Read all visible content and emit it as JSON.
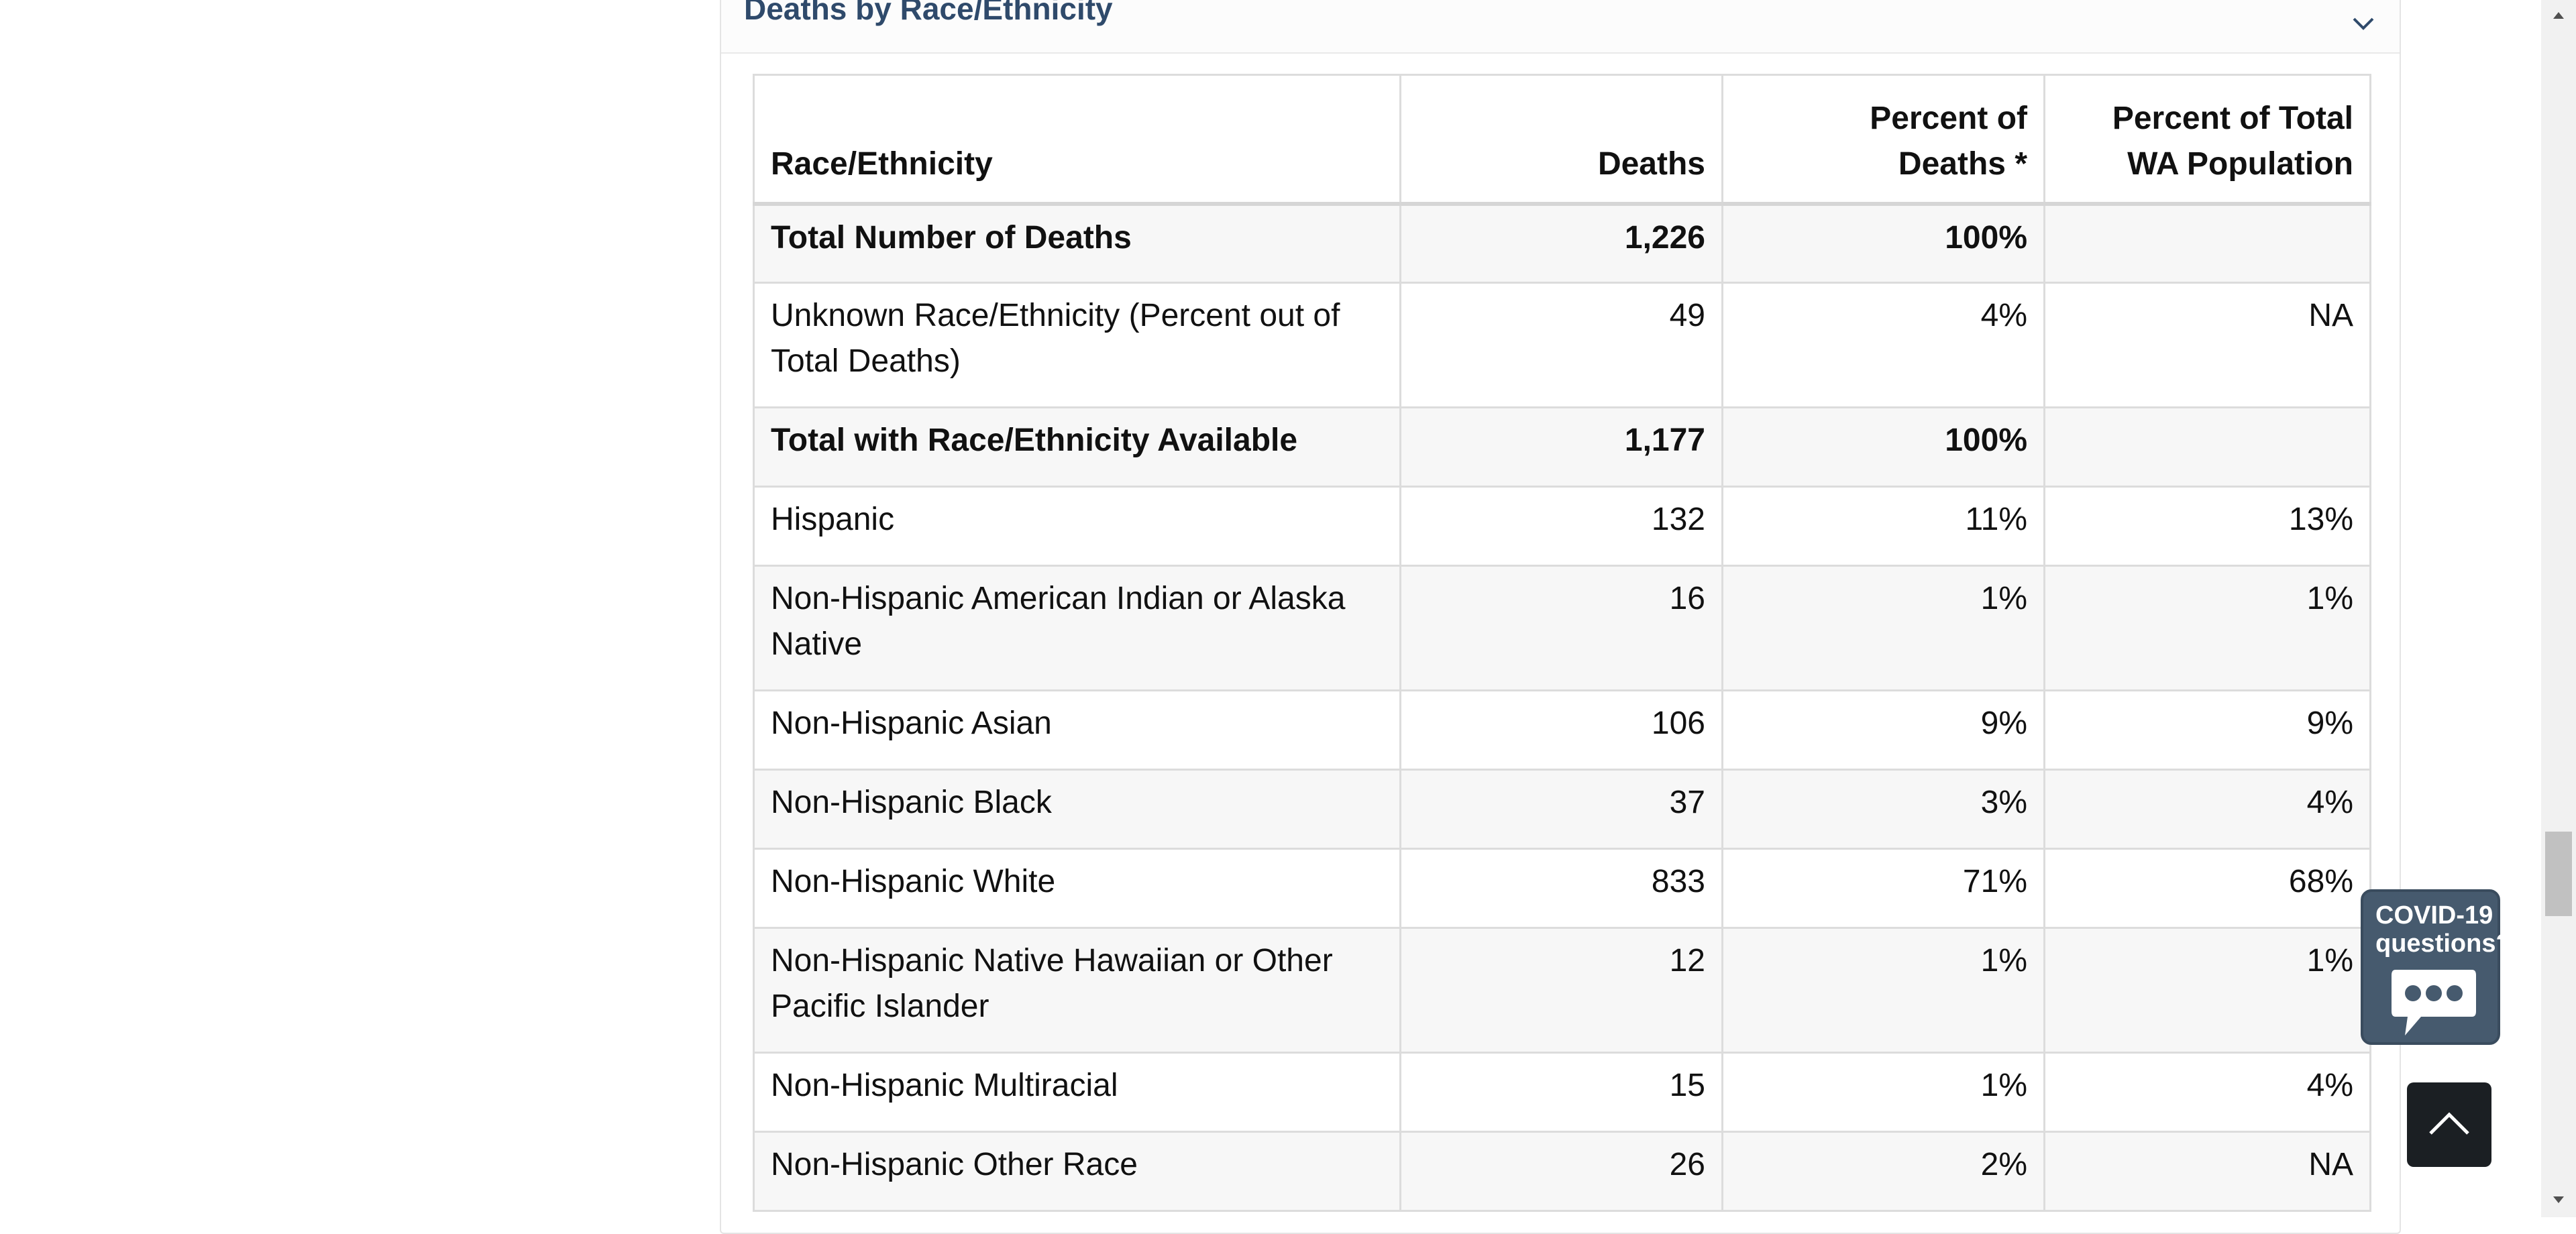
{
  "section": {
    "title": "Deaths by Race/Ethnicity"
  },
  "table": {
    "headers": {
      "race": "Race/Ethnicity",
      "deaths": "Deaths",
      "pct_deaths_l1": "Percent of",
      "pct_deaths_l2": "Deaths *",
      "pct_pop_l1": "Percent of Total",
      "pct_pop_l2": "WA Population"
    },
    "rows": [
      {
        "label": "Total Number of Deaths",
        "deaths": "1,226",
        "pct_deaths": "100%",
        "pct_pop": ""
      },
      {
        "label": "Unknown Race/Ethnicity (Percent out of Total Deaths)",
        "deaths": "49",
        "pct_deaths": "4%",
        "pct_pop": "NA"
      },
      {
        "label": "Total with Race/Ethnicity Available",
        "deaths": "1,177",
        "pct_deaths": "100%",
        "pct_pop": ""
      },
      {
        "label": "Hispanic",
        "deaths": "132",
        "pct_deaths": "11%",
        "pct_pop": "13%"
      },
      {
        "label": "Non-Hispanic American Indian or Alaska Native",
        "deaths": "16",
        "pct_deaths": "1%",
        "pct_pop": "1%"
      },
      {
        "label": "Non-Hispanic Asian",
        "deaths": "106",
        "pct_deaths": "9%",
        "pct_pop": "9%"
      },
      {
        "label": "Non-Hispanic Black",
        "deaths": "37",
        "pct_deaths": "3%",
        "pct_pop": "4%"
      },
      {
        "label": "Non-Hispanic White",
        "deaths": "833",
        "pct_deaths": "71%",
        "pct_pop": "68%"
      },
      {
        "label": "Non-Hispanic Native Hawaiian or Other Pacific Islander",
        "deaths": "12",
        "pct_deaths": "1%",
        "pct_pop": "1%"
      },
      {
        "label": "Non-Hispanic Multiracial",
        "deaths": "15",
        "pct_deaths": "1%",
        "pct_pop": "4%"
      },
      {
        "label": "Non-Hispanic Other Race",
        "deaths": "26",
        "pct_deaths": "2%",
        "pct_pop": "NA"
      }
    ]
  },
  "chat_widget": {
    "line1": "COVID-19",
    "line2": "questions?"
  },
  "icons": {
    "collapse": "chevron-down-icon",
    "chat": "chat-bubble-icon",
    "back_to_top": "chevron-up-icon",
    "scroll_up": "scroll-up-arrow-icon",
    "scroll_down": "scroll-down-arrow-icon"
  },
  "colors": {
    "title": "#2f4a6b",
    "chat_widget_bg": "#465a6e",
    "back_to_top_bg": "#1b1f23",
    "row_stripe": "#f7f7f7"
  }
}
